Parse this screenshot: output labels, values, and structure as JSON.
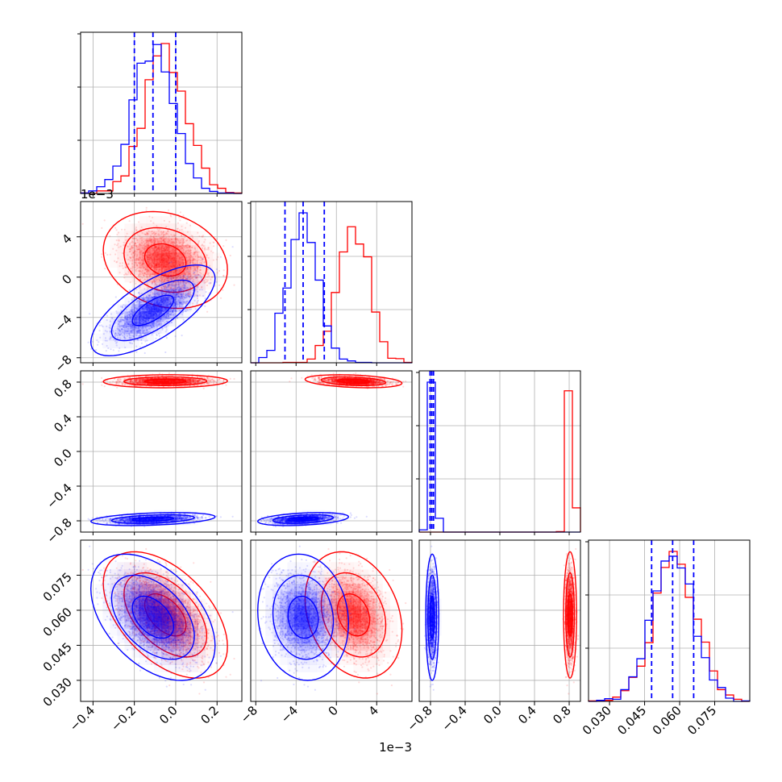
{
  "chart_data": {
    "type": "scatter",
    "title": "",
    "layout": "corner",
    "series": [
      {
        "color": "#ff0000",
        "mean": [
          -0.05,
          0.0017,
          0.81,
          0.058
        ],
        "sd": [
          0.1,
          0.0016,
          0.025,
          0.009
        ],
        "corr": [
          [
            1,
            -0.2,
            0.05,
            -0.5
          ],
          [
            -0.2,
            1,
            -0.3,
            -0.25
          ],
          [
            0.05,
            -0.3,
            1,
            0
          ],
          [
            -0.5,
            -0.25,
            0,
            1
          ]
        ]
      },
      {
        "color": "#0000ff",
        "mean": [
          -0.11,
          -0.0033,
          -0.78,
          0.057
        ],
        "sd": [
          0.1,
          0.0015,
          0.025,
          0.009
        ],
        "corr": [
          [
            1,
            0.7,
            0.35,
            -0.45
          ],
          [
            0.7,
            1,
            0.35,
            -0.1
          ],
          [
            0.35,
            0.35,
            1,
            0
          ],
          [
            -0.45,
            -0.1,
            0,
            1
          ]
        ]
      }
    ],
    "quantile_color": "#0000ff",
    "quantiles": [
      [
        -0.2,
        -0.11,
        0.0
      ],
      [
        -0.0051,
        -0.0033,
        -0.0012
      ],
      [
        -0.805,
        -0.785,
        -0.765
      ],
      [
        0.048,
        0.057,
        0.066
      ]
    ],
    "ranges": [
      [
        -0.46,
        0.32
      ],
      [
        -0.0085,
        0.0075
      ],
      [
        -0.93,
        0.93
      ],
      [
        0.021,
        0.09
      ]
    ],
    "hist_bins": 20,
    "contour_levels": [
      0.393,
      0.865,
      0.989
    ],
    "grid": true,
    "axes": [
      {
        "ticks": [
          -0.4,
          -0.2,
          0.0,
          0.2
        ],
        "labels": [
          "−0.4",
          "−0.2",
          "0.0",
          "0.2"
        ],
        "offset": ""
      },
      {
        "ticks": [
          -0.008,
          -0.004,
          0,
          0.004
        ],
        "labels": [
          "−8",
          "−4",
          "0",
          "4"
        ],
        "offset": "1e−3"
      },
      {
        "ticks": [
          -0.8,
          -0.4,
          0.0,
          0.4,
          0.8
        ],
        "labels": [
          "−0.8",
          "−0.4",
          "0.0",
          "0.4",
          "0.8"
        ],
        "offset": ""
      },
      {
        "ticks": [
          0.03,
          0.045,
          0.06,
          0.075
        ],
        "labels": [
          "0.030",
          "0.045",
          "0.060",
          "0.075"
        ],
        "offset": ""
      }
    ]
  }
}
